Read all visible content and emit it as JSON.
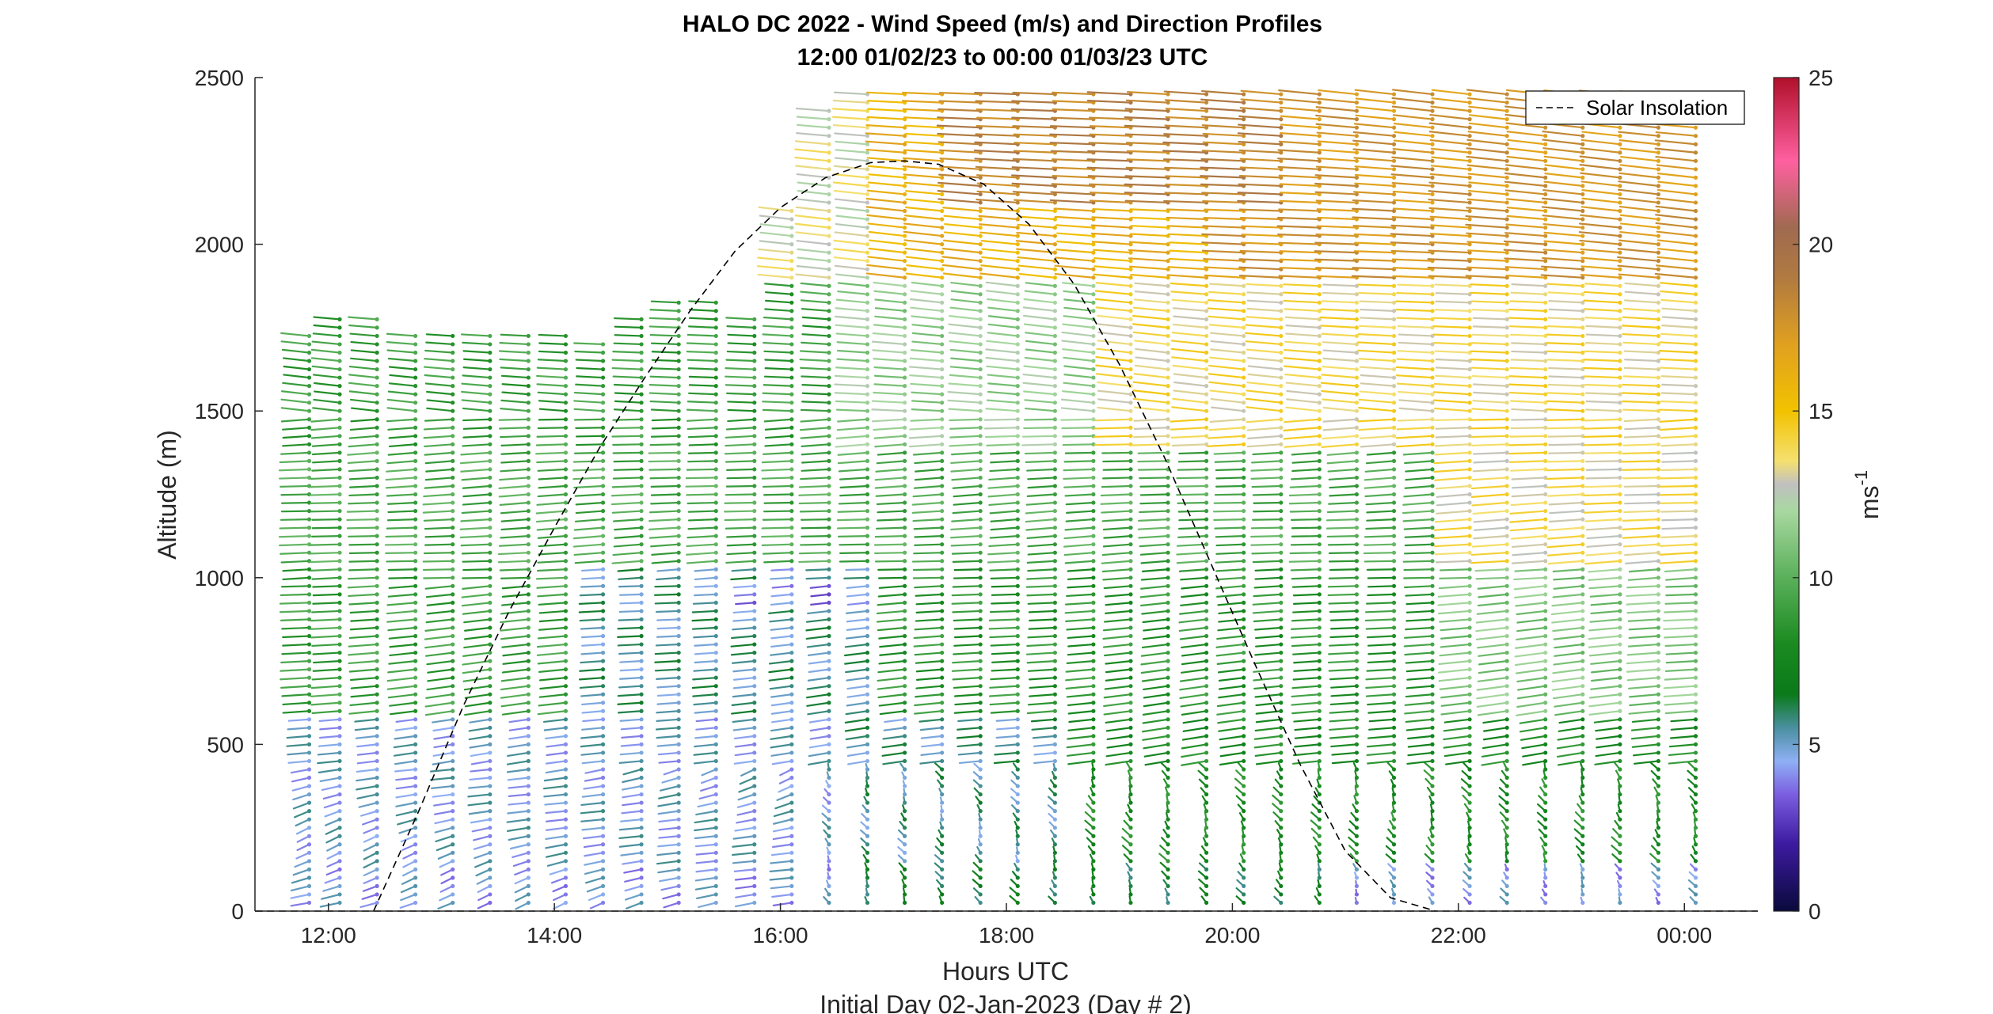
{
  "chart_data": {
    "type": "wind_barb_profile",
    "title": "HALO DC 2022 - Wind Speed (m/s) and Direction Profiles",
    "subtitle": "12:00 01/02/23 to 00:00 01/03/23  UTC",
    "xlabel": "Hours UTC",
    "xlabel2": "Initial Day 02-Jan-2023 (Day # 2)",
    "ylabel": "Altitude (m)",
    "xlim": [
      11.35,
      24.65
    ],
    "ylim": [
      0,
      2500
    ],
    "x_ticks": [
      12,
      14,
      16,
      18,
      20,
      22,
      24
    ],
    "x_tick_labels": [
      "12:00",
      "14:00",
      "16:00",
      "18:00",
      "20:00",
      "22:00",
      "00:00"
    ],
    "y_ticks": [
      0,
      500,
      1000,
      1500,
      2000,
      2500
    ],
    "y_tick_labels": [
      "0",
      "500",
      "1000",
      "1500",
      "2000",
      "2500"
    ],
    "colorbar": {
      "label": "ms",
      "label_superscript": "-1",
      "range": [
        0,
        25
      ],
      "ticks": [
        0,
        5,
        10,
        15,
        20,
        25
      ],
      "tick_labels": [
        "0",
        "5",
        "10",
        "15",
        "20",
        "25"
      ],
      "stops": [
        {
          "v": 0,
          "c": "#0a0a3c"
        },
        {
          "v": 2,
          "c": "#3c1aa0"
        },
        {
          "v": 3.5,
          "c": "#7b5ee0"
        },
        {
          "v": 4.5,
          "c": "#8fb0f5"
        },
        {
          "v": 5.5,
          "c": "#4a8fa0"
        },
        {
          "v": 6.5,
          "c": "#0a7a1a"
        },
        {
          "v": 8,
          "c": "#1a8a20"
        },
        {
          "v": 10,
          "c": "#5ab05a"
        },
        {
          "v": 12,
          "c": "#a8d8a0"
        },
        {
          "v": 12.8,
          "c": "#c0c0c0"
        },
        {
          "v": 13.5,
          "c": "#f5e070"
        },
        {
          "v": 15,
          "c": "#f2c200"
        },
        {
          "v": 17,
          "c": "#e0a020"
        },
        {
          "v": 19,
          "c": "#b07a40"
        },
        {
          "v": 20.5,
          "c": "#a06a50"
        },
        {
          "v": 22.5,
          "c": "#ff60a0"
        },
        {
          "v": 25,
          "c": "#b0102a"
        }
      ]
    },
    "legend": {
      "entries": [
        "Solar Insolation"
      ],
      "placement": "top-right",
      "style": "dashed-black"
    },
    "solar_insolation": {
      "x": [
        12.4,
        12.8,
        13.2,
        13.6,
        14.0,
        14.4,
        14.8,
        15.2,
        15.6,
        16.0,
        16.4,
        16.8,
        17.1,
        17.4,
        17.8,
        18.2,
        18.6,
        19.0,
        19.4,
        19.8,
        20.2,
        20.6,
        21.0,
        21.4,
        21.8
      ],
      "y": [
        0,
        300,
        620,
        900,
        1150,
        1390,
        1600,
        1800,
        1980,
        2110,
        2200,
        2245,
        2250,
        2240,
        2180,
        2060,
        1880,
        1640,
        1360,
        1050,
        740,
        440,
        180,
        40,
        0
      ]
    },
    "profiles": [
      {
        "time": 11.83,
        "top": 1730
      },
      {
        "time": 12.1,
        "top": 1780
      },
      {
        "time": 12.43,
        "top": 1780
      },
      {
        "time": 12.77,
        "top": 1740
      },
      {
        "time": 13.1,
        "top": 1740
      },
      {
        "time": 13.43,
        "top": 1740
      },
      {
        "time": 13.77,
        "top": 1740
      },
      {
        "time": 14.1,
        "top": 1740
      },
      {
        "time": 14.43,
        "top": 1720
      },
      {
        "time": 14.77,
        "top": 1780
      },
      {
        "time": 15.1,
        "top": 1830
      },
      {
        "time": 15.43,
        "top": 1830
      },
      {
        "time": 15.77,
        "top": 1780
      },
      {
        "time": 16.1,
        "top": 2100
      },
      {
        "time": 16.43,
        "top": 2400
      },
      {
        "time": 16.77,
        "top": 2470
      },
      {
        "time": 17.1,
        "top": 2470
      },
      {
        "time": 17.43,
        "top": 2470
      },
      {
        "time": 17.77,
        "top": 2470
      },
      {
        "time": 18.1,
        "top": 2470
      },
      {
        "time": 18.43,
        "top": 2470
      },
      {
        "time": 18.77,
        "top": 2470
      },
      {
        "time": 19.1,
        "top": 2470
      },
      {
        "time": 19.43,
        "top": 2470
      },
      {
        "time": 19.77,
        "top": 2470
      },
      {
        "time": 20.1,
        "top": 2470
      },
      {
        "time": 20.43,
        "top": 2470
      },
      {
        "time": 20.77,
        "top": 2470
      },
      {
        "time": 21.1,
        "top": 2470
      },
      {
        "time": 21.43,
        "top": 2470
      },
      {
        "time": 21.77,
        "top": 2470
      },
      {
        "time": 22.1,
        "top": 2470
      },
      {
        "time": 22.43,
        "top": 2470
      },
      {
        "time": 22.77,
        "top": 2470
      },
      {
        "time": 23.1,
        "top": 2470
      },
      {
        "time": 23.43,
        "top": 2470
      },
      {
        "time": 23.77,
        "top": 2470
      },
      {
        "time": 24.1,
        "top": 2470
      }
    ],
    "level_spacing_m": 25,
    "grid": false
  }
}
